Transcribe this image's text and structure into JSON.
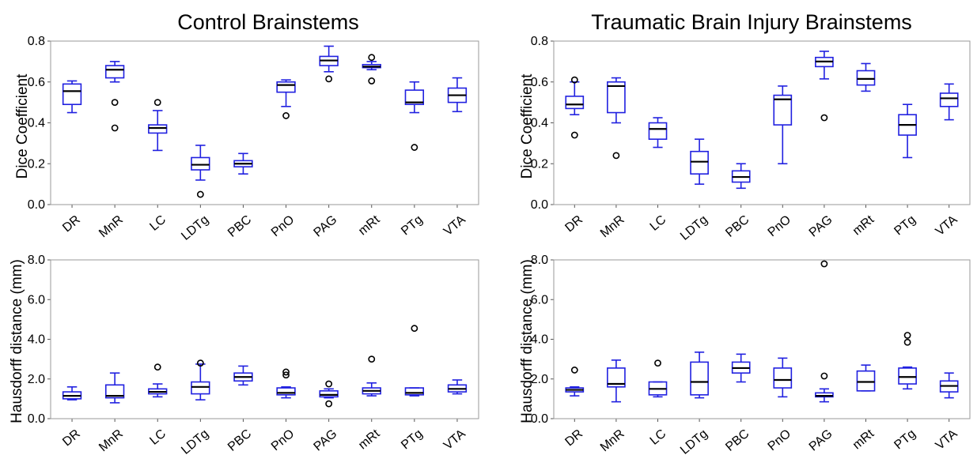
{
  "charts": [
    {
      "type": "box",
      "title": "Control Brainstems",
      "ylabel": "Dice Coefficient",
      "ylim": [
        0,
        0.8
      ],
      "yticks": [
        "0.0",
        "0.2",
        "0.4",
        "0.6",
        "0.8"
      ],
      "categories": [
        "DR",
        "MnR",
        "LC",
        "LDTg",
        "PBC",
        "PnO",
        "PAG",
        "mRt",
        "PTg",
        "VTA"
      ],
      "boxes": [
        {
          "lo": 0.45,
          "q1": 0.49,
          "med": 0.555,
          "q3": 0.59,
          "hi": 0.605,
          "outliers": []
        },
        {
          "lo": 0.6,
          "q1": 0.62,
          "med": 0.66,
          "q3": 0.68,
          "hi": 0.7,
          "outliers": [
            0.5,
            0.375
          ]
        },
        {
          "lo": 0.265,
          "q1": 0.35,
          "med": 0.375,
          "q3": 0.39,
          "hi": 0.46,
          "outliers": [
            0.5
          ]
        },
        {
          "lo": 0.12,
          "q1": 0.17,
          "med": 0.195,
          "q3": 0.23,
          "hi": 0.29,
          "outliers": [
            0.05
          ]
        },
        {
          "lo": 0.15,
          "q1": 0.185,
          "med": 0.2,
          "q3": 0.215,
          "hi": 0.25,
          "outliers": []
        },
        {
          "lo": 0.48,
          "q1": 0.55,
          "med": 0.585,
          "q3": 0.6,
          "hi": 0.61,
          "outliers": [
            0.435
          ]
        },
        {
          "lo": 0.65,
          "q1": 0.68,
          "med": 0.705,
          "q3": 0.725,
          "hi": 0.775,
          "outliers": [
            0.615
          ]
        },
        {
          "lo": 0.66,
          "q1": 0.67,
          "med": 0.675,
          "q3": 0.685,
          "hi": 0.7,
          "outliers": [
            0.72,
            0.605
          ]
        },
        {
          "lo": 0.45,
          "q1": 0.49,
          "med": 0.5,
          "q3": 0.56,
          "hi": 0.6,
          "outliers": [
            0.28
          ]
        },
        {
          "lo": 0.455,
          "q1": 0.5,
          "med": 0.535,
          "q3": 0.57,
          "hi": 0.62,
          "outliers": []
        }
      ]
    },
    {
      "type": "box",
      "title": "Traumatic Brain Injury Brainstems",
      "ylabel": "Dice Coefficient",
      "ylim": [
        0,
        0.8
      ],
      "yticks": [
        "0.0",
        "0.2",
        "0.4",
        "0.6",
        "0.8"
      ],
      "categories": [
        "DR",
        "MnR",
        "LC",
        "LDTg",
        "PBC",
        "PnO",
        "PAG",
        "mRt",
        "PTg",
        "VTA"
      ],
      "boxes": [
        {
          "lo": 0.44,
          "q1": 0.47,
          "med": 0.49,
          "q3": 0.53,
          "hi": 0.6,
          "outliers": [
            0.61,
            0.34
          ]
        },
        {
          "lo": 0.4,
          "q1": 0.45,
          "med": 0.58,
          "q3": 0.6,
          "hi": 0.62,
          "outliers": [
            0.24
          ]
        },
        {
          "lo": 0.28,
          "q1": 0.32,
          "med": 0.37,
          "q3": 0.4,
          "hi": 0.425,
          "outliers": []
        },
        {
          "lo": 0.1,
          "q1": 0.15,
          "med": 0.21,
          "q3": 0.26,
          "hi": 0.32,
          "outliers": []
        },
        {
          "lo": 0.08,
          "q1": 0.11,
          "med": 0.135,
          "q3": 0.165,
          "hi": 0.2,
          "outliers": []
        },
        {
          "lo": 0.2,
          "q1": 0.39,
          "med": 0.515,
          "q3": 0.535,
          "hi": 0.58,
          "outliers": []
        },
        {
          "lo": 0.615,
          "q1": 0.675,
          "med": 0.7,
          "q3": 0.72,
          "hi": 0.75,
          "outliers": [
            0.425
          ]
        },
        {
          "lo": 0.555,
          "q1": 0.585,
          "med": 0.615,
          "q3": 0.655,
          "hi": 0.69,
          "outliers": []
        },
        {
          "lo": 0.23,
          "q1": 0.34,
          "med": 0.39,
          "q3": 0.44,
          "hi": 0.49,
          "outliers": []
        },
        {
          "lo": 0.415,
          "q1": 0.48,
          "med": 0.52,
          "q3": 0.545,
          "hi": 0.59,
          "outliers": []
        }
      ]
    },
    {
      "type": "box",
      "title": "",
      "ylabel": "Hausdorff distance (mm)",
      "ylim": [
        0,
        8
      ],
      "yticks": [
        "0.0",
        "2.0",
        "4.0",
        "6.0",
        "8.0"
      ],
      "categories": [
        "DR",
        "MnR",
        "LC",
        "LDTg",
        "PBC",
        "PnO",
        "PAG",
        "mRt",
        "PTg",
        "VTA"
      ],
      "boxes": [
        {
          "lo": 0.95,
          "q1": 1.0,
          "med": 1.15,
          "q3": 1.35,
          "hi": 1.6,
          "outliers": []
        },
        {
          "lo": 0.8,
          "q1": 1.05,
          "med": 1.15,
          "q3": 1.7,
          "hi": 2.3,
          "outliers": []
        },
        {
          "lo": 1.1,
          "q1": 1.25,
          "med": 1.35,
          "q3": 1.5,
          "hi": 1.75,
          "outliers": [
            2.6
          ]
        },
        {
          "lo": 0.95,
          "q1": 1.25,
          "med": 1.6,
          "q3": 1.85,
          "hi": 2.75,
          "outliers": [
            2.8
          ]
        },
        {
          "lo": 1.7,
          "q1": 1.9,
          "med": 2.1,
          "q3": 2.3,
          "hi": 2.65,
          "outliers": []
        },
        {
          "lo": 1.05,
          "q1": 1.2,
          "med": 1.3,
          "q3": 1.55,
          "hi": 1.6,
          "outliers": [
            2.2,
            2.35
          ]
        },
        {
          "lo": 1.05,
          "q1": 1.1,
          "med": 1.2,
          "q3": 1.4,
          "hi": 1.5,
          "outliers": [
            0.75,
            1.75
          ]
        },
        {
          "lo": 1.15,
          "q1": 1.25,
          "med": 1.4,
          "q3": 1.55,
          "hi": 1.8,
          "outliers": [
            3.0
          ]
        },
        {
          "lo": 1.15,
          "q1": 1.2,
          "med": 1.3,
          "q3": 1.55,
          "hi": 1.55,
          "outliers": [
            4.55
          ]
        },
        {
          "lo": 1.25,
          "q1": 1.35,
          "med": 1.5,
          "q3": 1.7,
          "hi": 1.95,
          "outliers": []
        }
      ]
    },
    {
      "type": "box",
      "title": "",
      "ylabel": "Hausdorff distance (mm)",
      "ylim": [
        0,
        8
      ],
      "yticks": [
        "0.0",
        "2.0",
        "4.0",
        "6.0",
        "8.0"
      ],
      "categories": [
        "DR",
        "MnR",
        "LC",
        "LDTg",
        "PBC",
        "PnO",
        "PAG",
        "mRt",
        "PTg",
        "VTA"
      ],
      "boxes": [
        {
          "lo": 1.15,
          "q1": 1.35,
          "med": 1.45,
          "q3": 1.55,
          "hi": 1.6,
          "outliers": [
            2.45
          ]
        },
        {
          "lo": 0.85,
          "q1": 1.6,
          "med": 1.75,
          "q3": 2.55,
          "hi": 2.95,
          "outliers": []
        },
        {
          "lo": 1.1,
          "q1": 1.2,
          "med": 1.5,
          "q3": 1.85,
          "hi": 1.85,
          "outliers": [
            2.8
          ]
        },
        {
          "lo": 1.05,
          "q1": 1.2,
          "med": 1.85,
          "q3": 2.85,
          "hi": 3.35,
          "outliers": []
        },
        {
          "lo": 1.85,
          "q1": 2.3,
          "med": 2.55,
          "q3": 2.85,
          "hi": 3.25,
          "outliers": []
        },
        {
          "lo": 1.1,
          "q1": 1.55,
          "med": 1.95,
          "q3": 2.55,
          "hi": 3.05,
          "outliers": []
        },
        {
          "lo": 0.85,
          "q1": 1.1,
          "med": 1.15,
          "q3": 1.3,
          "hi": 1.5,
          "outliers": [
            7.8,
            2.15
          ]
        },
        {
          "lo": 1.4,
          "q1": 1.4,
          "med": 1.85,
          "q3": 2.4,
          "hi": 2.7,
          "outliers": []
        },
        {
          "lo": 1.5,
          "q1": 1.75,
          "med": 2.1,
          "q3": 2.55,
          "hi": 2.6,
          "outliers": [
            4.2,
            3.85
          ]
        },
        {
          "lo": 1.05,
          "q1": 1.35,
          "med": 1.65,
          "q3": 1.9,
          "hi": 2.3,
          "outliers": []
        }
      ]
    }
  ],
  "style": {
    "box_color": "#2020e0",
    "median_color": "#000000",
    "outlier_color": "#000000"
  }
}
